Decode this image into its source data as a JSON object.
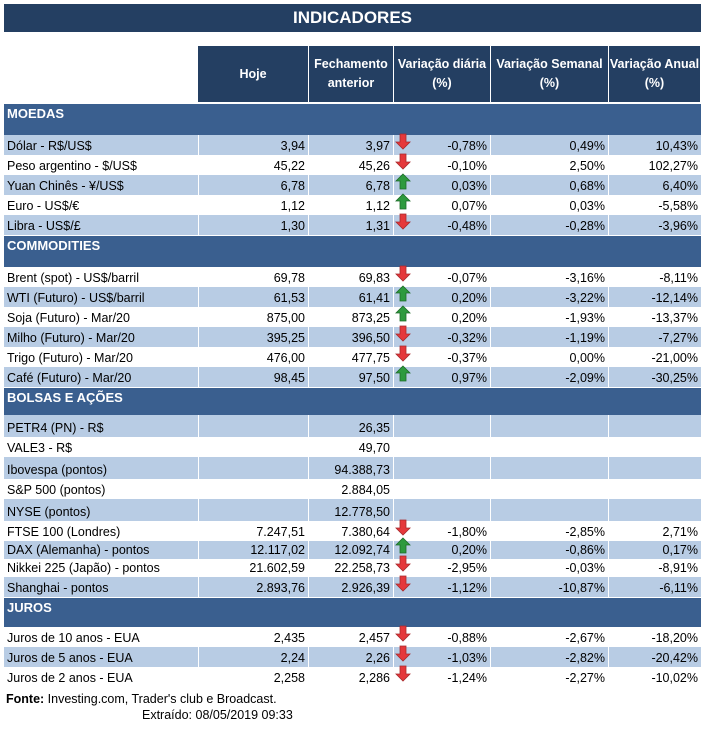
{
  "title": "INDICADORES",
  "columns": [
    "Hoje",
    "Fechamento anterior",
    "Variação diária (%)",
    "Variação Semanal (%)",
    "Variação Anual (%)"
  ],
  "colors": {
    "header": "#243f62",
    "section": "#3a5f8f",
    "stripe": "#b8cce4",
    "up": "#2e9a3e",
    "down": "#e5383b"
  },
  "sections": [
    {
      "name": "MOEDAS",
      "rows": [
        {
          "label": "Dólar - R$/US$",
          "hoje": "3,94",
          "fech": "3,97",
          "dir": "down",
          "dia": "-0,78%",
          "sem": "0,49%",
          "ano": "10,43%"
        },
        {
          "label": "Peso argentino - $/US$",
          "hoje": "45,22",
          "fech": "45,26",
          "dir": "down",
          "dia": "-0,10%",
          "sem": "2,50%",
          "ano": "102,27%"
        },
        {
          "label": "Yuan Chinês - ¥/US$",
          "hoje": "6,78",
          "fech": "6,78",
          "dir": "up",
          "dia": "0,03%",
          "sem": "0,68%",
          "ano": "6,40%"
        },
        {
          "label": "Euro - US$/€",
          "hoje": "1,12",
          "fech": "1,12",
          "dir": "up",
          "dia": "0,07%",
          "sem": "0,03%",
          "ano": "-5,58%"
        },
        {
          "label": "Libra - US$/£",
          "hoje": "1,30",
          "fech": "1,31",
          "dir": "down",
          "dia": "-0,48%",
          "sem": "-0,28%",
          "ano": "-3,96%"
        }
      ]
    },
    {
      "name": "COMMODITIES",
      "rows": [
        {
          "label": "Brent (spot) - US$/barril",
          "hoje": "69,78",
          "fech": "69,83",
          "dir": "down",
          "dia": "-0,07%",
          "sem": "-3,16%",
          "ano": "-8,11%"
        },
        {
          "label": "WTI (Futuro) - US$/barril",
          "hoje": "61,53",
          "fech": "61,41",
          "dir": "up",
          "dia": "0,20%",
          "sem": "-3,22%",
          "ano": "-12,14%"
        },
        {
          "label": "Soja (Futuro) - Mar/20",
          "hoje": "875,00",
          "fech": "873,25",
          "dir": "up",
          "dia": "0,20%",
          "sem": "-1,93%",
          "ano": "-13,37%"
        },
        {
          "label": "Milho (Futuro) - Mar/20",
          "hoje": "395,25",
          "fech": "396,50",
          "dir": "down",
          "dia": "-0,32%",
          "sem": "-1,19%",
          "ano": "-7,27%"
        },
        {
          "label": "Trigo (Futuro) - Mar/20",
          "hoje": "476,00",
          "fech": "477,75",
          "dir": "down",
          "dia": "-0,37%",
          "sem": "0,00%",
          "ano": "-21,00%"
        },
        {
          "label": "Café (Futuro) - Mar/20",
          "hoje": "98,45",
          "fech": "97,50",
          "dir": "up",
          "dia": "0,97%",
          "sem": "-2,09%",
          "ano": "-30,25%"
        }
      ]
    },
    {
      "name": "BOLSAS E AÇÕES",
      "rows": [
        {
          "label": "PETR4 (PN) - R$",
          "hoje": "",
          "fech": "26,35",
          "dir": "",
          "dia": "",
          "sem": "",
          "ano": ""
        },
        {
          "label": "VALE3 - R$",
          "hoje": "",
          "fech": "49,70",
          "dir": "",
          "dia": "",
          "sem": "",
          "ano": ""
        },
        {
          "label": "Ibovespa (pontos)",
          "hoje": "",
          "fech": "94.388,73",
          "dir": "",
          "dia": "",
          "sem": "",
          "ano": ""
        },
        {
          "label": "S&P 500 (pontos)",
          "hoje": "",
          "fech": "2.884,05",
          "dir": "",
          "dia": "",
          "sem": "",
          "ano": ""
        },
        {
          "label": "NYSE (pontos)",
          "hoje": "",
          "fech": "12.778,50",
          "dir": "",
          "dia": "",
          "sem": "",
          "ano": ""
        },
        {
          "label": "FTSE 100 (Londres)",
          "hoje": "7.247,51",
          "fech": "7.380,64",
          "dir": "down",
          "dia": "-1,80%",
          "sem": "-2,85%",
          "ano": "2,71%"
        },
        {
          "label": "DAX (Alemanha) - pontos",
          "hoje": "12.117,02",
          "fech": "12.092,74",
          "dir": "up",
          "dia": "0,20%",
          "sem": "-0,86%",
          "ano": "0,17%"
        },
        {
          "label": "Nikkei 225 (Japão) - pontos",
          "hoje": "21.602,59",
          "fech": "22.258,73",
          "dir": "down",
          "dia": "-2,95%",
          "sem": "-0,03%",
          "ano": "-8,91%"
        },
        {
          "label": "Shanghai - pontos",
          "hoje": "2.893,76",
          "fech": "2.926,39",
          "dir": "down",
          "dia": "-1,12%",
          "sem": "-10,87%",
          "ano": "-6,11%"
        }
      ]
    },
    {
      "name": "JUROS",
      "rows": [
        {
          "label": "Juros de 10 anos - EUA",
          "hoje": "2,435",
          "fech": "2,457",
          "dir": "down",
          "dia": "-0,88%",
          "sem": "-2,67%",
          "ano": "-18,20%"
        },
        {
          "label": "Juros de 5 anos - EUA",
          "hoje": "2,24",
          "fech": "2,26",
          "dir": "down",
          "dia": "-1,03%",
          "sem": "-2,82%",
          "ano": "-20,42%"
        },
        {
          "label": "Juros de 2 anos - EUA",
          "hoje": "2,258",
          "fech": "2,286",
          "dir": "down",
          "dia": "-1,24%",
          "sem": "-2,27%",
          "ano": "-10,02%"
        }
      ]
    }
  ],
  "footer": {
    "source_label": "Fonte:",
    "source_text": " Investing.com, Trader's club e Broadcast.",
    "extracted": "Extraído:  08/05/2019 09:33"
  }
}
